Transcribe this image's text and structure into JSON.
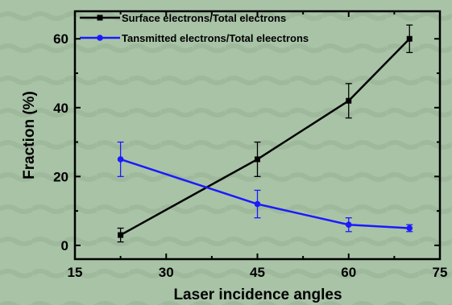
{
  "chart_data": {
    "type": "line",
    "title": "",
    "xlabel": "Laser incidence angles",
    "ylabel": "Fraction (%)",
    "xlim": [
      15,
      75
    ],
    "ylim": [
      -4,
      68
    ],
    "xticks": [
      "15",
      "30",
      "45",
      "60",
      "75"
    ],
    "yticks": [
      "0",
      "20",
      "40",
      "60"
    ],
    "legend_position": "top-left",
    "grid": false,
    "series": [
      {
        "name": "Surface electrons/Total electrons",
        "color": "#000000",
        "marker": "square",
        "x": [
          22.5,
          45,
          60,
          70
        ],
        "y": [
          3,
          25,
          42,
          60
        ],
        "error": [
          2,
          5,
          5,
          4
        ]
      },
      {
        "name": "Tansmitted electrons/Total eleectrons",
        "color": "#1a1aff",
        "marker": "circle",
        "x": [
          22.5,
          45,
          60,
          70
        ],
        "y": [
          25,
          12,
          6,
          5
        ],
        "error": [
          5,
          4,
          2,
          1
        ]
      }
    ]
  }
}
